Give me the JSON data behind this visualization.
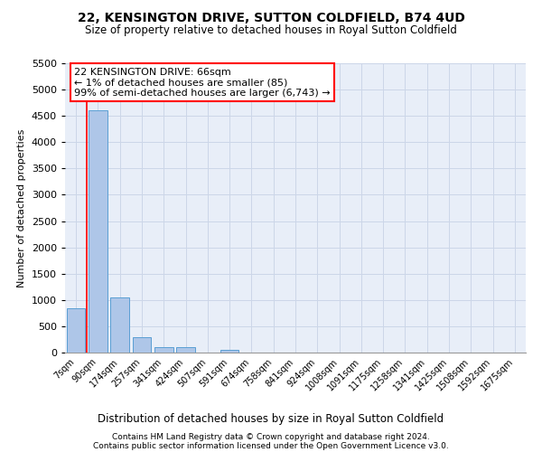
{
  "title": "22, KENSINGTON DRIVE, SUTTON COLDFIELD, B74 4UD",
  "subtitle": "Size of property relative to detached houses in Royal Sutton Coldfield",
  "xlabel": "Distribution of detached houses by size in Royal Sutton Coldfield",
  "ylabel": "Number of detached properties",
  "footnote1": "Contains HM Land Registry data © Crown copyright and database right 2024.",
  "footnote2": "Contains public sector information licensed under the Open Government Licence v3.0.",
  "bar_labels": [
    "7sqm",
    "90sqm",
    "174sqm",
    "257sqm",
    "341sqm",
    "424sqm",
    "507sqm",
    "591sqm",
    "674sqm",
    "758sqm",
    "841sqm",
    "924sqm",
    "1008sqm",
    "1091sqm",
    "1175sqm",
    "1258sqm",
    "1341sqm",
    "1425sqm",
    "1508sqm",
    "1592sqm",
    "1675sqm"
  ],
  "bar_values": [
    850,
    4600,
    1050,
    300,
    100,
    100,
    0,
    50,
    0,
    0,
    0,
    0,
    0,
    0,
    0,
    0,
    0,
    0,
    0,
    0,
    0
  ],
  "bar_color": "#aec6e8",
  "bar_edge_color": "#5a9fd4",
  "grid_color": "#ccd6e8",
  "background_color": "#e8eef8",
  "red_line_x": 0.5,
  "annotation_text": "22 KENSINGTON DRIVE: 66sqm\n← 1% of detached houses are smaller (85)\n99% of semi-detached houses are larger (6,743) →",
  "ylim": [
    0,
    5500
  ],
  "yticks": [
    0,
    500,
    1000,
    1500,
    2000,
    2500,
    3000,
    3500,
    4000,
    4500,
    5000,
    5500
  ]
}
